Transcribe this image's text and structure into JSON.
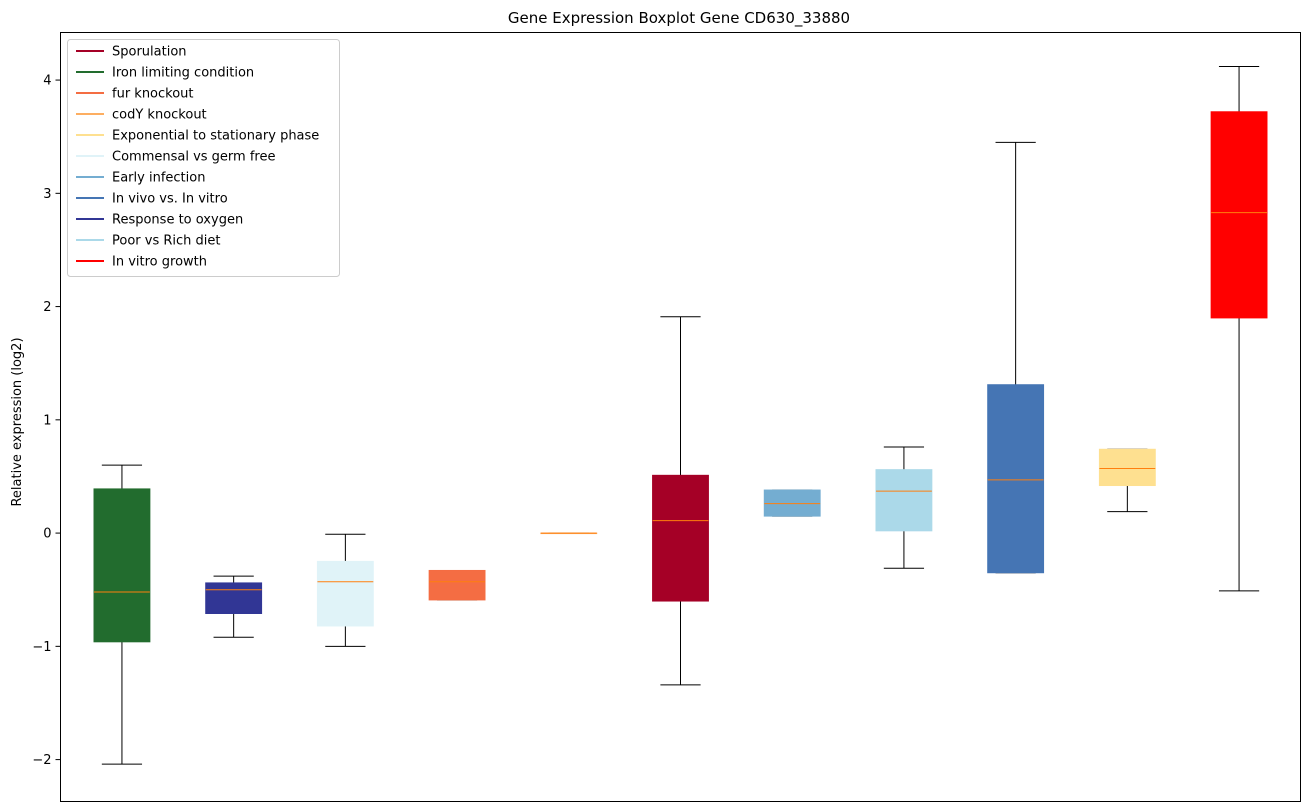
{
  "chart_data": {
    "type": "boxplot",
    "title": "Gene Expression Boxplot Gene CD630_33880",
    "xlabel": "",
    "ylabel": "Relative expression (log2)",
    "ylim": [
      -2.37,
      4.42
    ],
    "yticks": [
      -2,
      -1,
      0,
      1,
      2,
      3,
      4
    ],
    "ytick_labels": [
      "−2",
      "−1",
      "0",
      "1",
      "2",
      "3",
      "4"
    ],
    "legend_position": "upper-left",
    "legend": [
      {
        "label": "Sporulation",
        "color": "#a50026"
      },
      {
        "label": "Iron limiting condition",
        "color": "#226c2e"
      },
      {
        "label": "fur knockout",
        "color": "#f46d43"
      },
      {
        "label": "codY knockout",
        "color": "#fdae61"
      },
      {
        "label": "Exponential to stationary phase",
        "color": "#fee090"
      },
      {
        "label": "Commensal vs germ free",
        "color": "#e0f3f8"
      },
      {
        "label": "Early infection",
        "color": "#74add1"
      },
      {
        "label": "In vivo vs. In vitro",
        "color": "#4575b4"
      },
      {
        "label": "Response to oxygen",
        "color": "#313695"
      },
      {
        "label": "Poor vs Rich diet",
        "color": "#abd9e9"
      },
      {
        "label": "In vitro growth",
        "color": "#ff0000"
      }
    ],
    "median_color": "#ff7f0e",
    "boxes": [
      {
        "group": "Iron limiting condition",
        "color": "#226c2e",
        "whisker_low": -2.04,
        "q1": -0.96,
        "median": -0.52,
        "q3": 0.39,
        "whisker_high": 0.6
      },
      {
        "group": "Response to oxygen",
        "color": "#313695",
        "whisker_low": -0.92,
        "q1": -0.71,
        "median": -0.5,
        "q3": -0.44,
        "whisker_high": -0.38
      },
      {
        "group": "Commensal vs germ free",
        "color": "#e0f3f8",
        "whisker_low": -1.0,
        "q1": -0.82,
        "median": -0.43,
        "q3": -0.25,
        "whisker_high": -0.01
      },
      {
        "group": "fur knockout",
        "color": "#f46d43",
        "whisker_low": -0.59,
        "q1": -0.59,
        "median": -0.43,
        "q3": -0.33,
        "whisker_high": -0.33
      },
      {
        "group": "codY knockout",
        "color": "#fdae61",
        "whisker_low": 0.0,
        "q1": 0.0,
        "median": 0.0,
        "q3": 0.0,
        "whisker_high": 0.0
      },
      {
        "group": "Sporulation",
        "color": "#a50026",
        "whisker_low": -1.34,
        "q1": -0.6,
        "median": 0.11,
        "q3": 0.51,
        "whisker_high": 1.91
      },
      {
        "group": "Early infection",
        "color": "#74add1",
        "whisker_low": 0.15,
        "q1": 0.15,
        "median": 0.26,
        "q3": 0.38,
        "whisker_high": 0.38
      },
      {
        "group": "Poor vs Rich diet",
        "color": "#abd9e9",
        "whisker_low": -0.31,
        "q1": 0.02,
        "median": 0.37,
        "q3": 0.56,
        "whisker_high": 0.76
      },
      {
        "group": "In vivo vs. In vitro",
        "color": "#4575b4",
        "whisker_low": -0.35,
        "q1": -0.35,
        "median": 0.47,
        "q3": 1.31,
        "whisker_high": 3.45
      },
      {
        "group": "Exponential to stationary phase",
        "color": "#fee090",
        "whisker_low": 0.19,
        "q1": 0.42,
        "median": 0.57,
        "q3": 0.74,
        "whisker_high": 0.74
      },
      {
        "group": "In vitro growth",
        "color": "#ff0000",
        "whisker_low": -0.51,
        "q1": 1.9,
        "median": 2.83,
        "q3": 3.72,
        "whisker_high": 4.12
      }
    ]
  }
}
